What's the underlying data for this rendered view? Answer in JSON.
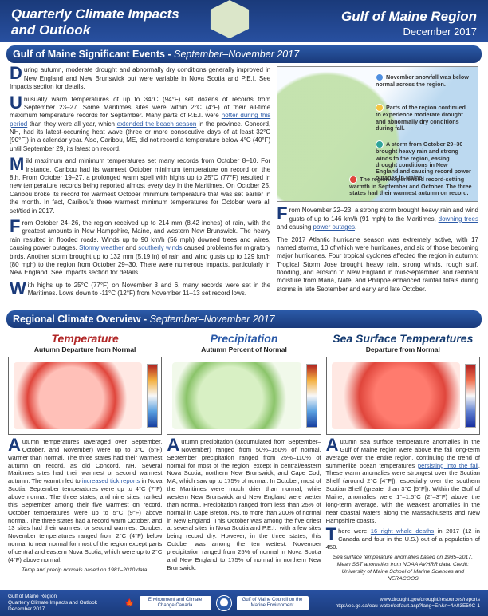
{
  "header": {
    "title_line1": "Quarterly Climate Impacts",
    "title_line2": "and Outlook",
    "region": "Gulf of Maine Region",
    "date": "December 2017"
  },
  "banner_events": {
    "title": "Gulf of Maine Significant Events - ",
    "period": "September–November 2017"
  },
  "events": {
    "p1": "During autumn, moderate drought and abnormally dry conditions generally improved in New England and New Brunswick but were variable in Nova Scotia and P.E.I. See Impacts section for details.",
    "p2a": "Unusually warm temperatures of up to 34°C (94°F) set dozens of records from September 23–27. Some Maritimes sites were within 2°C (4°F) of their all-time maximum temperature records for September. Many parts of P.E.I. were ",
    "p2_link1": "hotter during this period",
    "p2b": " than they were all year, which ",
    "p2_link2": "extended the beach season",
    "p2c": " in the province. Concord, NH, had its latest-occurring heat wave (three or more consecutive days of at least 32°C [90°F]) in a calendar year. Also, Caribou, ME, did not record a temperature below 4°C (40°F) until September 29, its latest on record.",
    "p3": "Mild maximum and minimum temperatures set many records from October 8–10. For instance, Caribou had its warmest October minimum temperature on record on the 8th. From October 19–27, a prolonged warm spell with highs up to 25°C (77°F) resulted in new temperature records being reported almost every day in the Maritimes. On October 25, Caribou broke its record for warmest October minimum temperature that was set earlier in the month. In fact, Caribou's three warmest minimum temperatures for October were all set/tied in 2017.",
    "p4a": "From October 24–26, the region received up to 214 mm (8.42 inches) of rain, with the greatest amounts in New Hampshire, Maine, and western New Brunswick. The heavy rain resulted in flooded roads. Winds up to 90 km/h (56 mph) downed trees and wires, causing power outages. ",
    "p4_link1": "Stormy weather",
    "p4b": " and ",
    "p4_link2": "southerly winds",
    "p4c": " caused problems for migratory birds. Another storm brought up to 132 mm (5.19 in) of rain and wind gusts up to 129 km/h (80 mph) to the region from October 29–30. There were numerous impacts, particularly in New England. See Impacts section for details.",
    "p5": "With highs up to 25°C (77°F) on November 3 and 6, many records were set in the Maritimes. Lows down to -11°C (12°F) from November 11–13 set record lows.",
    "p6a": "From November 22–23, a strong storm brought heavy rain and wind gusts of up to 146 km/h (91 mph) to the Maritimes, ",
    "p6_link1": "downing trees",
    "p6b": " and causing ",
    "p6_link2": "power outages",
    "p6c": ".",
    "p7": "The 2017 Atlantic hurricane season was extremely active, with 17 named storms, 10 of which were hurricanes, and six of those becoming major hurricanes. Four tropical cyclones affected the region in autumn: Tropical Storm Jose brought heavy rain, strong winds, rough surf, flooding, and erosion to New England in mid-September, and remnant moisture from Maria, Nate, and Philippe enhanced rainfall totals during storms in late September and early and late October."
  },
  "map_callouts": {
    "c1": "November snowfall was below normal across the region.",
    "c2": "Parts of the region continued to experience moderate drought and abnormally dry conditions during fall.",
    "c3": "A storm from October 29–30 brought heavy rain and strong winds to the region, easing drought conditions in New England and causing record power outages in Maine.",
    "c4": "The region experienced record-setting warmth in September and October. The three states had their warmest autumn on record.",
    "colors": {
      "c1": "#4f8fe0",
      "c2": "#f4c542",
      "c3": "#2fa39a",
      "c4": "#e0463c"
    }
  },
  "banner_overview": {
    "title": "Regional Climate Overview - ",
    "period": "September–November 2017"
  },
  "overview": {
    "temp": {
      "title": "Temperature",
      "subtitle": "Autumn Departure from Normal",
      "color": "#b02525",
      "p1a": "Autumn temperatures (averaged over September, October, and November) were up to 3°C (5°F) warmer than normal. The three states had their warmest autumn on record, as did Concord, NH. Several Maritimes sites had their warmest or second warmest autumn. The warmth led to ",
      "p1_link": "increased tick reports",
      "p1b": " in Nova Scotia. September temperatures were up to 4°C (7°F) above normal. The three states, and nine sites, ranked this September among their five warmest on record. October temperatures were up to 5°C (9°F) above normal. The three states had a record warm October, and 13 sites had their warmest or second warmest October. November temperatures ranged from 2°C (4°F) below normal to near normal for most of the region except parts of central and eastern Nova Scotia, which were up to 2°C (4°F) above normal.",
      "foot": "Temp and precip normals based on 1981–2010 data."
    },
    "precip": {
      "title": "Precipitation",
      "subtitle": "Autumn Percent of Normal",
      "color": "#2b5aa8",
      "p1": "Autumn precipitation (accumulated from September–November) ranged from 50%–150% of normal. September precipitation ranged from 25%–110% of normal for most of the region, except in central/eastern Nova Scotia, northern New Brunswick, and Cape Cod, MA, which saw up to 175% of normal. In October, most of the Maritimes were much drier than normal, while western New Brunswick and New England were wetter than normal. Precipitation ranged from less than 25% of normal in Cape Breton, NS, to more than 200% of normal in New England. This October was among the five driest at several sites in Nova Scotia and P.E.I., with a few sites being record dry. However, in the three states, this October was among the ten wettest. November precipitation ranged from 25% of normal in Nova Scotia and New England to 175% of normal in northern New Brunswick."
    },
    "sst": {
      "title": "Sea Surface Temperatures",
      "subtitle": "Departure from Normal",
      "color": "#143a70",
      "p1a": "Autumn sea surface temperature anomalies in the Gulf of Maine region were above the fall long-term average over the entire region, continuing the trend of summerlike ocean temperatures ",
      "p1_link": "persisting into the fall",
      "p1b": ". These warm anomalies were strongest over the Scotian Shelf (around 2°C [4°F]), especially over the southern Scotian Shelf (greater than 3°C [5°F]). Within the Gulf of Maine, anomalies were 1°–1.5°C (2°–3°F) above the long-term average, with the weakest anomalies in the near coastal waters along the Massachusetts and New Hampshire coasts.",
      "p2a": "There were ",
      "p2_link": "16 right whale deaths",
      "p2b": " in 2017 (12 in Canada and four in the U.S.) out of a population of 450.",
      "foot": "Sea surface temperature anomalies based on 1985–2017. Mean SST anomalies from NOAA AVHRR data. Credit: University of Maine School of Marine Sciences and NERACOOS"
    }
  },
  "footer": {
    "left1": "Gulf of Maine Region",
    "left2": "Quarterly Climate Impacts and Outlook",
    "left3": "December 2017",
    "logo1": "Environment and Climate Change Canada",
    "logo2": "Gulf of Maine Council on the Marine Environment",
    "url1": "www.drought.gov/drought/resources/reports",
    "url2": "http://ec.gc.ca/eau-water/default.asp?lang=En&n=4A03E50C-1"
  }
}
